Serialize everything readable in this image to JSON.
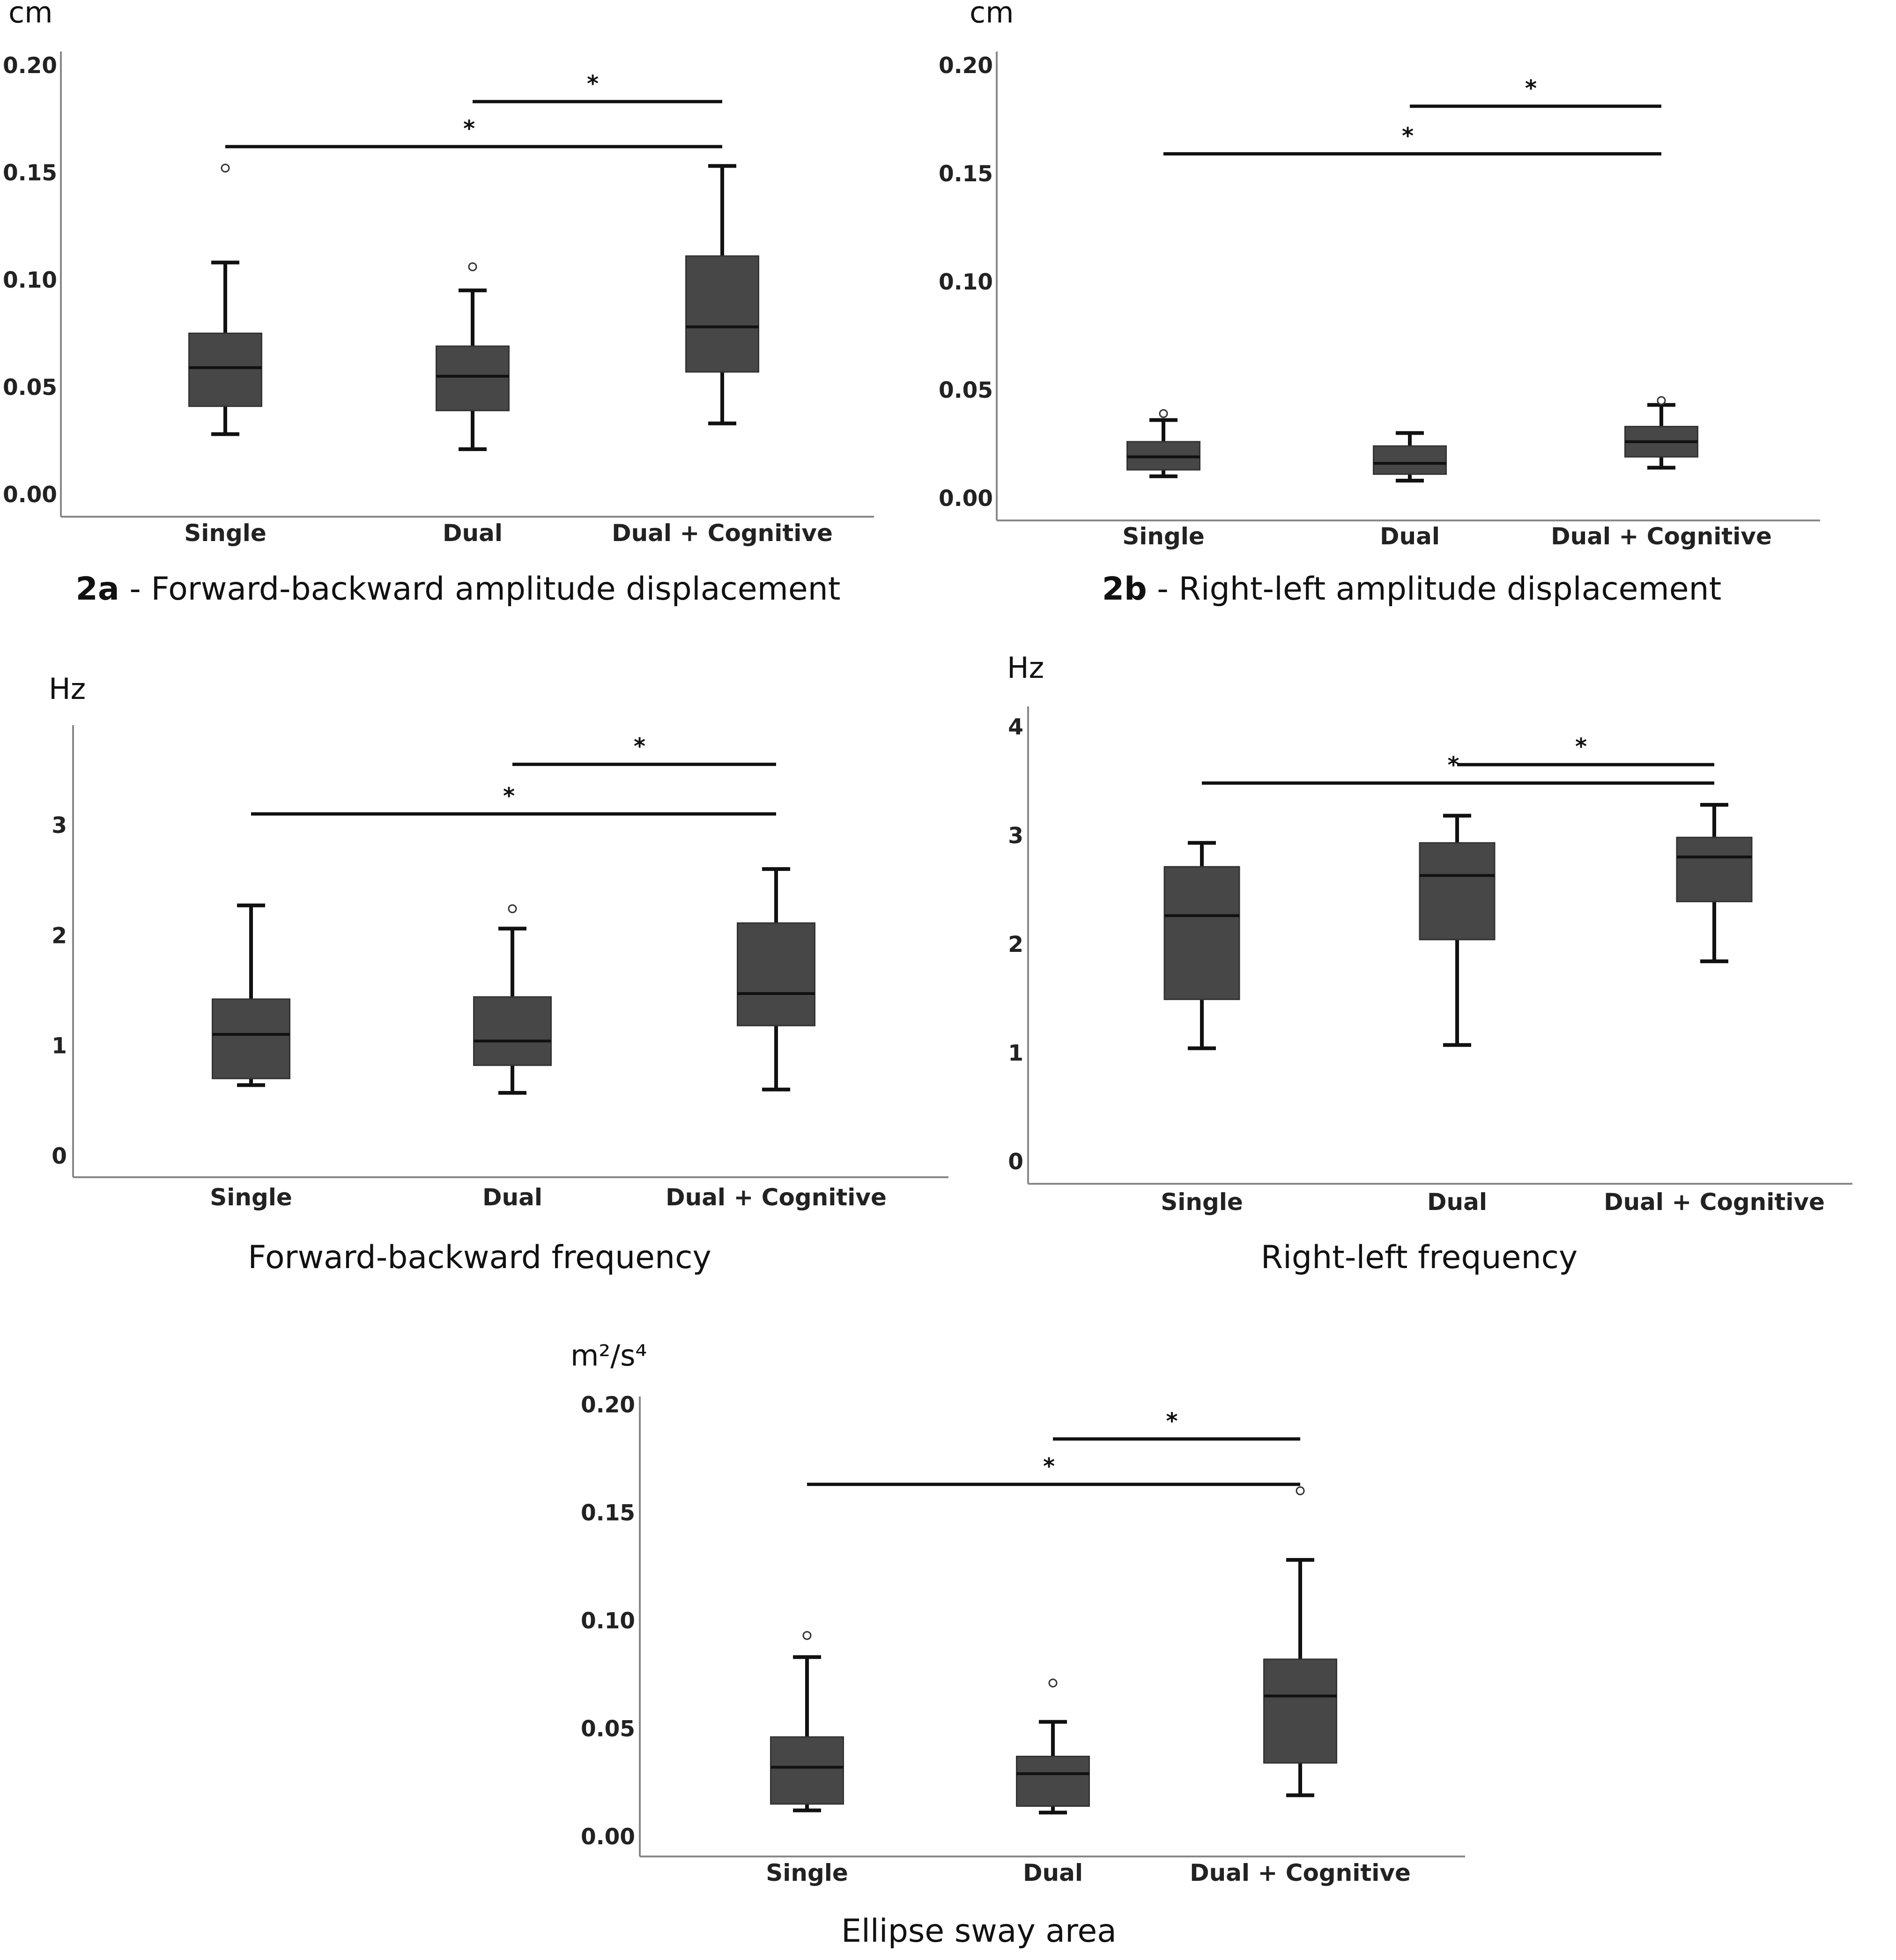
{
  "chart_data": [
    {
      "type": "box",
      "unit": "cm",
      "caption_bold": "2a",
      "caption": " - Forward-backward amplitude displacement",
      "categories": [
        "Single",
        "Dual",
        "Dual + Cognitive"
      ],
      "ylim": [
        0,
        0.2
      ],
      "yticks": [
        "0.00",
        "0.05",
        "0.10",
        "0.15",
        "0.20"
      ],
      "tick_values": [
        0,
        0.05,
        0.1,
        0.15,
        0.2
      ],
      "boxes": [
        {
          "min": 0.028,
          "q1": 0.041,
          "median": 0.059,
          "q3": 0.075,
          "max": 0.108,
          "outliers": [
            0.152
          ]
        },
        {
          "min": 0.021,
          "q1": 0.039,
          "median": 0.055,
          "q3": 0.069,
          "max": 0.095,
          "outliers": [
            0.106
          ]
        },
        {
          "min": 0.033,
          "q1": 0.057,
          "median": 0.078,
          "q3": 0.111,
          "max": 0.153,
          "outliers": []
        }
      ],
      "significance": [
        {
          "from": 1,
          "to": 2,
          "label": "*",
          "y": 0.183
        },
        {
          "from": 0,
          "to": 2,
          "label": "*",
          "y": 0.162
        }
      ]
    },
    {
      "type": "box",
      "unit": "cm",
      "caption_bold": "2b",
      "caption": " - Right-left amplitude displacement",
      "categories": [
        "Single",
        "Dual",
        "Dual + Cognitive"
      ],
      "ylim": [
        0,
        0.2
      ],
      "yticks": [
        "0.00",
        "0.05",
        "0.10",
        "0.15",
        "0.20"
      ],
      "tick_values": [
        0,
        0.05,
        0.1,
        0.15,
        0.2
      ],
      "boxes": [
        {
          "min": 0.01,
          "q1": 0.013,
          "median": 0.019,
          "q3": 0.026,
          "max": 0.036,
          "outliers": [
            0.039
          ]
        },
        {
          "min": 0.008,
          "q1": 0.011,
          "median": 0.016,
          "q3": 0.024,
          "max": 0.03,
          "outliers": []
        },
        {
          "min": 0.014,
          "q1": 0.019,
          "median": 0.026,
          "q3": 0.033,
          "max": 0.043,
          "outliers": [
            0.045
          ]
        }
      ],
      "significance": [
        {
          "from": 1,
          "to": 2,
          "label": "*",
          "y": 0.181
        },
        {
          "from": 0,
          "to": 2,
          "label": "*",
          "y": 0.159
        }
      ]
    },
    {
      "type": "box",
      "unit": "Hz",
      "caption_bold": "",
      "caption": "Forward-backward frequency",
      "categories": [
        "Single",
        "Dual",
        "Dual + Cognitive"
      ],
      "ylim": [
        0,
        3.6
      ],
      "yticks": [
        "0",
        "1",
        "2",
        "3"
      ],
      "tick_values": [
        0,
        1,
        2,
        3
      ],
      "boxes": [
        {
          "min": 0.64,
          "q1": 0.7,
          "median": 1.1,
          "q3": 1.42,
          "max": 2.27,
          "outliers": []
        },
        {
          "min": 0.57,
          "q1": 0.82,
          "median": 1.04,
          "q3": 1.44,
          "max": 2.06,
          "outliers": [
            2.24
          ]
        },
        {
          "min": 0.6,
          "q1": 1.18,
          "median": 1.47,
          "q3": 2.11,
          "max": 2.6,
          "outliers": []
        }
      ],
      "significance": [
        {
          "from": 1,
          "to": 2,
          "label": "*",
          "y": 3.55
        },
        {
          "from": 0,
          "to": 2,
          "label": "*",
          "y": 3.1
        }
      ]
    },
    {
      "type": "box",
      "unit": "Hz",
      "caption_bold": "",
      "caption": "Right-left frequency",
      "categories": [
        "Single",
        "Dual",
        "Dual + Cognitive"
      ],
      "ylim": [
        0,
        4.1
      ],
      "yticks": [
        "0",
        "1",
        "2",
        "3",
        "4"
      ],
      "tick_values": [
        0,
        1,
        2,
        3,
        4
      ],
      "boxes": [
        {
          "min": 1.04,
          "q1": 1.49,
          "median": 2.26,
          "q3": 2.71,
          "max": 2.93,
          "outliers": []
        },
        {
          "min": 1.07,
          "q1": 2.04,
          "median": 2.63,
          "q3": 2.93,
          "max": 3.18,
          "outliers": []
        },
        {
          "min": 1.84,
          "q1": 2.39,
          "median": 2.8,
          "q3": 2.98,
          "max": 3.28,
          "outliers": []
        }
      ],
      "significance": [
        {
          "from": 1,
          "to": 2,
          "label": "*",
          "y": 3.65
        },
        {
          "from": 0,
          "to": 2,
          "label": "*",
          "y": 3.48
        }
      ]
    },
    {
      "type": "box",
      "unit": "m²/s⁴",
      "caption_bold": "",
      "caption": "Ellipse sway area",
      "categories": [
        "Single",
        "Dual",
        "Dual + Cognitive"
      ],
      "ylim": [
        0,
        0.2
      ],
      "yticks": [
        "0.00",
        "0.05",
        "0.10",
        "0.15",
        "0.20"
      ],
      "tick_values": [
        0,
        0.05,
        0.1,
        0.15,
        0.2
      ],
      "boxes": [
        {
          "min": 0.012,
          "q1": 0.015,
          "median": 0.032,
          "q3": 0.046,
          "max": 0.083,
          "outliers": [
            0.093
          ]
        },
        {
          "min": 0.011,
          "q1": 0.014,
          "median": 0.029,
          "q3": 0.037,
          "max": 0.053,
          "outliers": [
            0.071
          ]
        },
        {
          "min": 0.019,
          "q1": 0.034,
          "median": 0.065,
          "q3": 0.082,
          "max": 0.128,
          "outliers": [
            0.16
          ]
        }
      ],
      "significance": [
        {
          "from": 1,
          "to": 2,
          "label": "*",
          "y": 0.184
        },
        {
          "from": 0,
          "to": 2,
          "label": "*",
          "y": 0.163
        }
      ]
    }
  ],
  "colors": {
    "box_fill": "#474747",
    "median": "#111111",
    "axis": "#888888",
    "line": "#111111",
    "text": "#222222"
  }
}
